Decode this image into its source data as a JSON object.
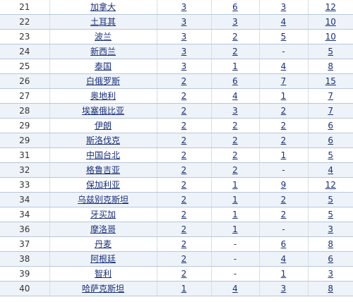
{
  "rows": [
    {
      "rank": "21",
      "country": "加拿大",
      "gold": "3",
      "silver": "6",
      "bronze": "3",
      "total": "12"
    },
    {
      "rank": "22",
      "country": "土耳其",
      "gold": "3",
      "silver": "3",
      "bronze": "4",
      "total": "10"
    },
    {
      "rank": "23",
      "country": "波兰",
      "gold": "3",
      "silver": "2",
      "bronze": "5",
      "total": "10"
    },
    {
      "rank": "24",
      "country": "新西兰",
      "gold": "3",
      "silver": "2",
      "bronze": "-",
      "total": "5"
    },
    {
      "rank": "25",
      "country": "泰国",
      "gold": "3",
      "silver": "1",
      "bronze": "4",
      "total": "8"
    },
    {
      "rank": "26",
      "country": "白俄罗斯",
      "gold": "2",
      "silver": "6",
      "bronze": "7",
      "total": "15"
    },
    {
      "rank": "27",
      "country": "奥地利",
      "gold": "2",
      "silver": "4",
      "bronze": "1",
      "total": "7"
    },
    {
      "rank": "28",
      "country": "埃塞俄比亚",
      "gold": "2",
      "silver": "3",
      "bronze": "2",
      "total": "7"
    },
    {
      "rank": "29",
      "country": "伊朗",
      "gold": "2",
      "silver": "2",
      "bronze": "2",
      "total": "6"
    },
    {
      "rank": "29",
      "country": "斯洛伐克",
      "gold": "2",
      "silver": "2",
      "bronze": "2",
      "total": "6"
    },
    {
      "rank": "31",
      "country": "中国台北",
      "gold": "2",
      "silver": "2",
      "bronze": "1",
      "total": "5"
    },
    {
      "rank": "32",
      "country": "格鲁吉亚",
      "gold": "2",
      "silver": "2",
      "bronze": "-",
      "total": "4"
    },
    {
      "rank": "33",
      "country": "保加利亚",
      "gold": "2",
      "silver": "1",
      "bronze": "9",
      "total": "12"
    },
    {
      "rank": "34",
      "country": "乌兹别克斯坦",
      "gold": "2",
      "silver": "1",
      "bronze": "2",
      "total": "5"
    },
    {
      "rank": "34",
      "country": "牙买加",
      "gold": "2",
      "silver": "1",
      "bronze": "2",
      "total": "5"
    },
    {
      "rank": "36",
      "country": "摩洛哥",
      "gold": "2",
      "silver": "1",
      "bronze": "-",
      "total": "3"
    },
    {
      "rank": "37",
      "country": "丹麦",
      "gold": "2",
      "silver": "-",
      "bronze": "6",
      "total": "8"
    },
    {
      "rank": "38",
      "country": "阿根廷",
      "gold": "2",
      "silver": "-",
      "bronze": "4",
      "total": "6"
    },
    {
      "rank": "39",
      "country": "智利",
      "gold": "2",
      "silver": "-",
      "bronze": "1",
      "total": "3"
    },
    {
      "rank": "40",
      "country": "哈萨克斯坦",
      "gold": "1",
      "silver": "4",
      "bronze": "3",
      "total": "8"
    }
  ],
  "colors": {
    "link": "#1a2f7a",
    "row_alt_background": "#eef3f9",
    "row_border": "#b9c7d8"
  }
}
